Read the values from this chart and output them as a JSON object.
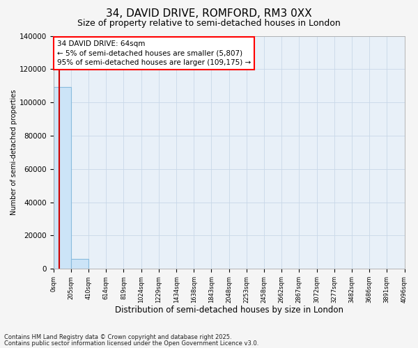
{
  "title": "34, DAVID DRIVE, ROMFORD, RM3 0XX",
  "subtitle": "Size of property relative to semi-detached houses in London",
  "xlabel": "Distribution of semi-detached houses by size in London",
  "ylabel": "Number of semi-detached properties",
  "property_size": 64,
  "smaller_pct": 5,
  "larger_pct": 95,
  "smaller_count": 5807,
  "larger_count": 109175,
  "annotation_text_line1": "34 DAVID DRIVE: 64sqm",
  "annotation_text_line2": "← 5% of semi-detached houses are smaller (5,807)",
  "annotation_text_line3": "95% of semi-detached houses are larger (109,175) →",
  "bin_edges": [
    0,
    205,
    410,
    614,
    819,
    1024,
    1229,
    1434,
    1638,
    1843,
    2048,
    2253,
    2458,
    2662,
    2867,
    3072,
    3277,
    3482,
    3686,
    3891,
    4096
  ],
  "bar_counts": [
    109175,
    5807,
    0,
    0,
    0,
    0,
    0,
    0,
    0,
    0,
    0,
    0,
    0,
    0,
    0,
    0,
    0,
    0,
    0,
    0
  ],
  "bar_color": "#cce4f7",
  "bar_edgecolor": "#88bbdd",
  "property_line_color": "#cc0000",
  "ylim": [
    0,
    140000
  ],
  "yticks": [
    0,
    20000,
    40000,
    60000,
    80000,
    100000,
    120000,
    140000
  ],
  "grid_color": "#c8d8e8",
  "plot_bg_color": "#e8f0f8",
  "background_color": "#f5f5f5",
  "footnote_line1": "Contains HM Land Registry data © Crown copyright and database right 2025.",
  "footnote_line2": "Contains public sector information licensed under the Open Government Licence v3.0."
}
